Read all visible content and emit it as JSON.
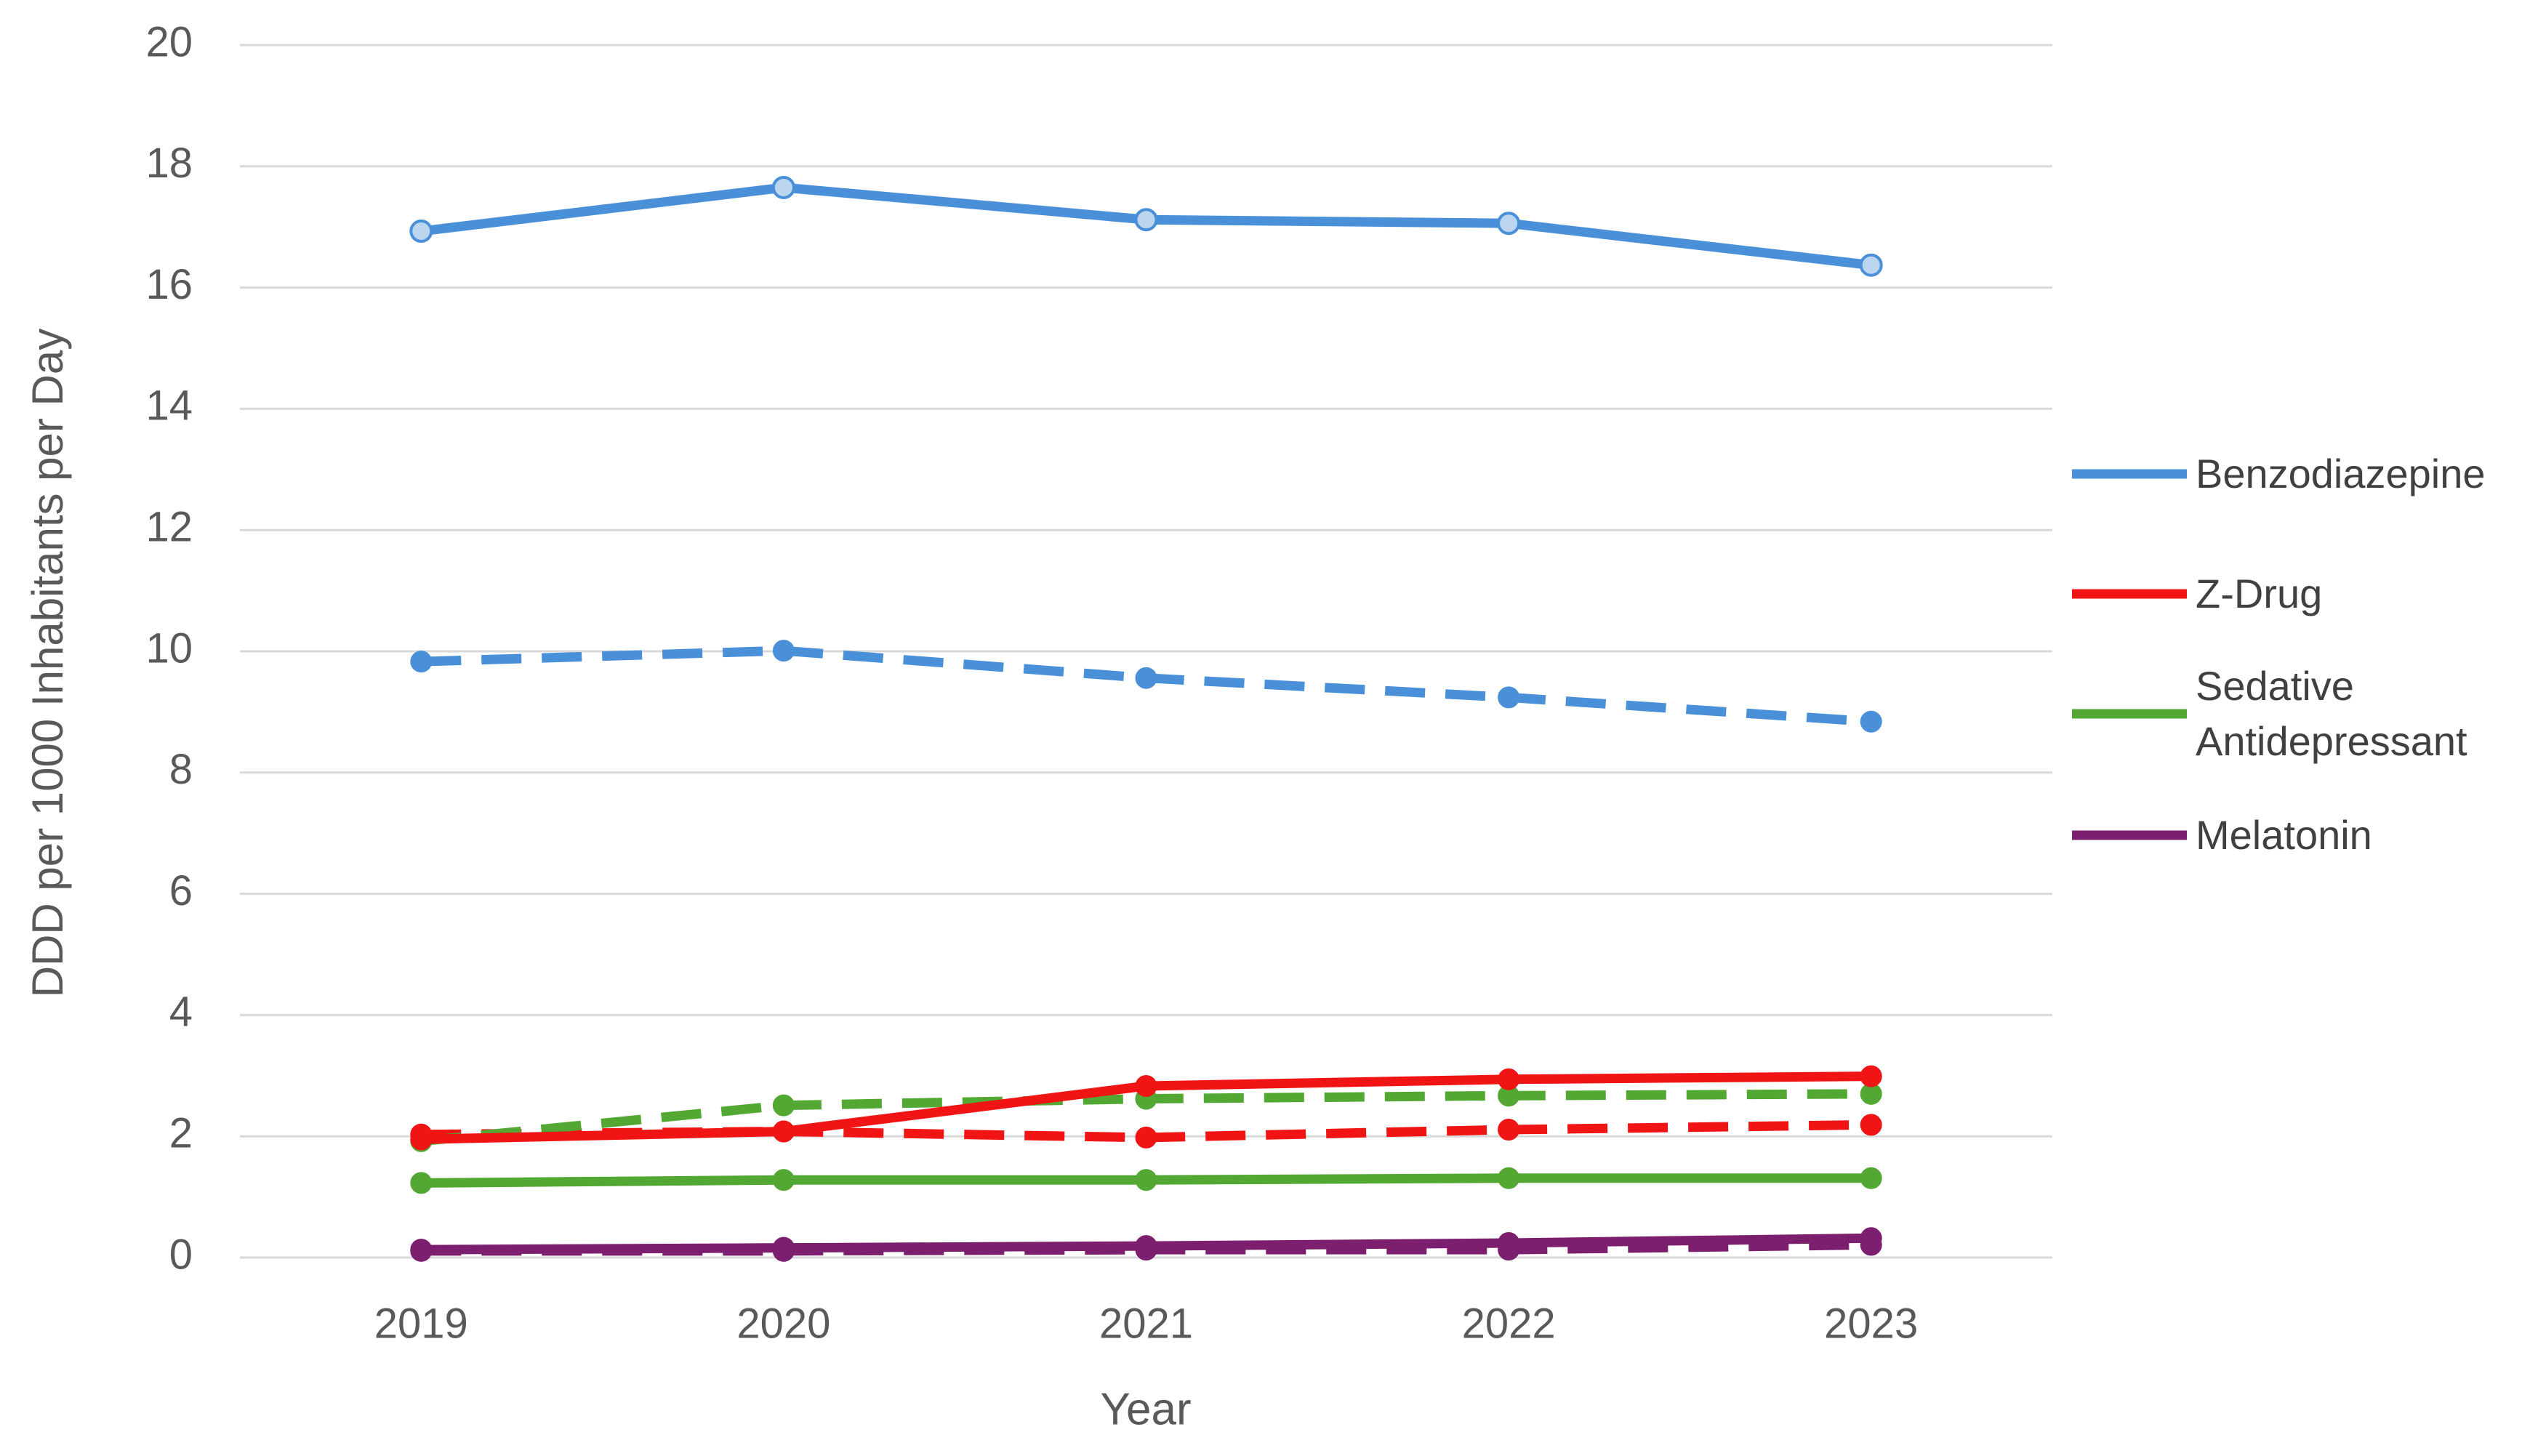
{
  "chart_data": {
    "type": "line",
    "x_label": "Year",
    "y_label": "DDD per 1000 Inhabitants per Day",
    "categories": [
      "2019",
      "2020",
      "2021",
      "2022",
      "2023"
    ],
    "ylim": [
      0,
      20
    ],
    "yticks": [
      0,
      2,
      4,
      6,
      8,
      10,
      12,
      14,
      16,
      18,
      20
    ],
    "grid": true,
    "legend": "right",
    "series": [
      {
        "name": "Benzodiazepine",
        "color": "#4a90d9",
        "dashed": false,
        "values": [
          16.93,
          17.65,
          17.12,
          17.06,
          16.37
        ]
      },
      {
        "name": "Z-Drug",
        "color": "#f01414",
        "dashed": false,
        "values": [
          1.95,
          2.08,
          2.83,
          2.94,
          2.99
        ]
      },
      {
        "name": "Sedative Antidepressant",
        "color": "#52a832",
        "dashed": false,
        "values": [
          1.23,
          1.28,
          1.28,
          1.31,
          1.31
        ]
      },
      {
        "name": "Melatonin",
        "color": "#7b1f6e",
        "dashed": false,
        "values": [
          0.13,
          0.16,
          0.19,
          0.24,
          0.32
        ]
      },
      {
        "color": "#4a90d9",
        "dashed": true,
        "values": [
          9.83,
          10.01,
          9.56,
          9.24,
          8.84
        ]
      },
      {
        "color": "#f01414",
        "dashed": true,
        "values": [
          2.03,
          2.08,
          1.98,
          2.11,
          2.19
        ]
      },
      {
        "color": "#52a832",
        "dashed": true,
        "values": [
          1.92,
          2.51,
          2.62,
          2.67,
          2.7
        ]
      },
      {
        "color": "#7b1f6e",
        "dashed": true,
        "values": [
          0.11,
          0.11,
          0.13,
          0.13,
          0.21
        ]
      }
    ]
  }
}
